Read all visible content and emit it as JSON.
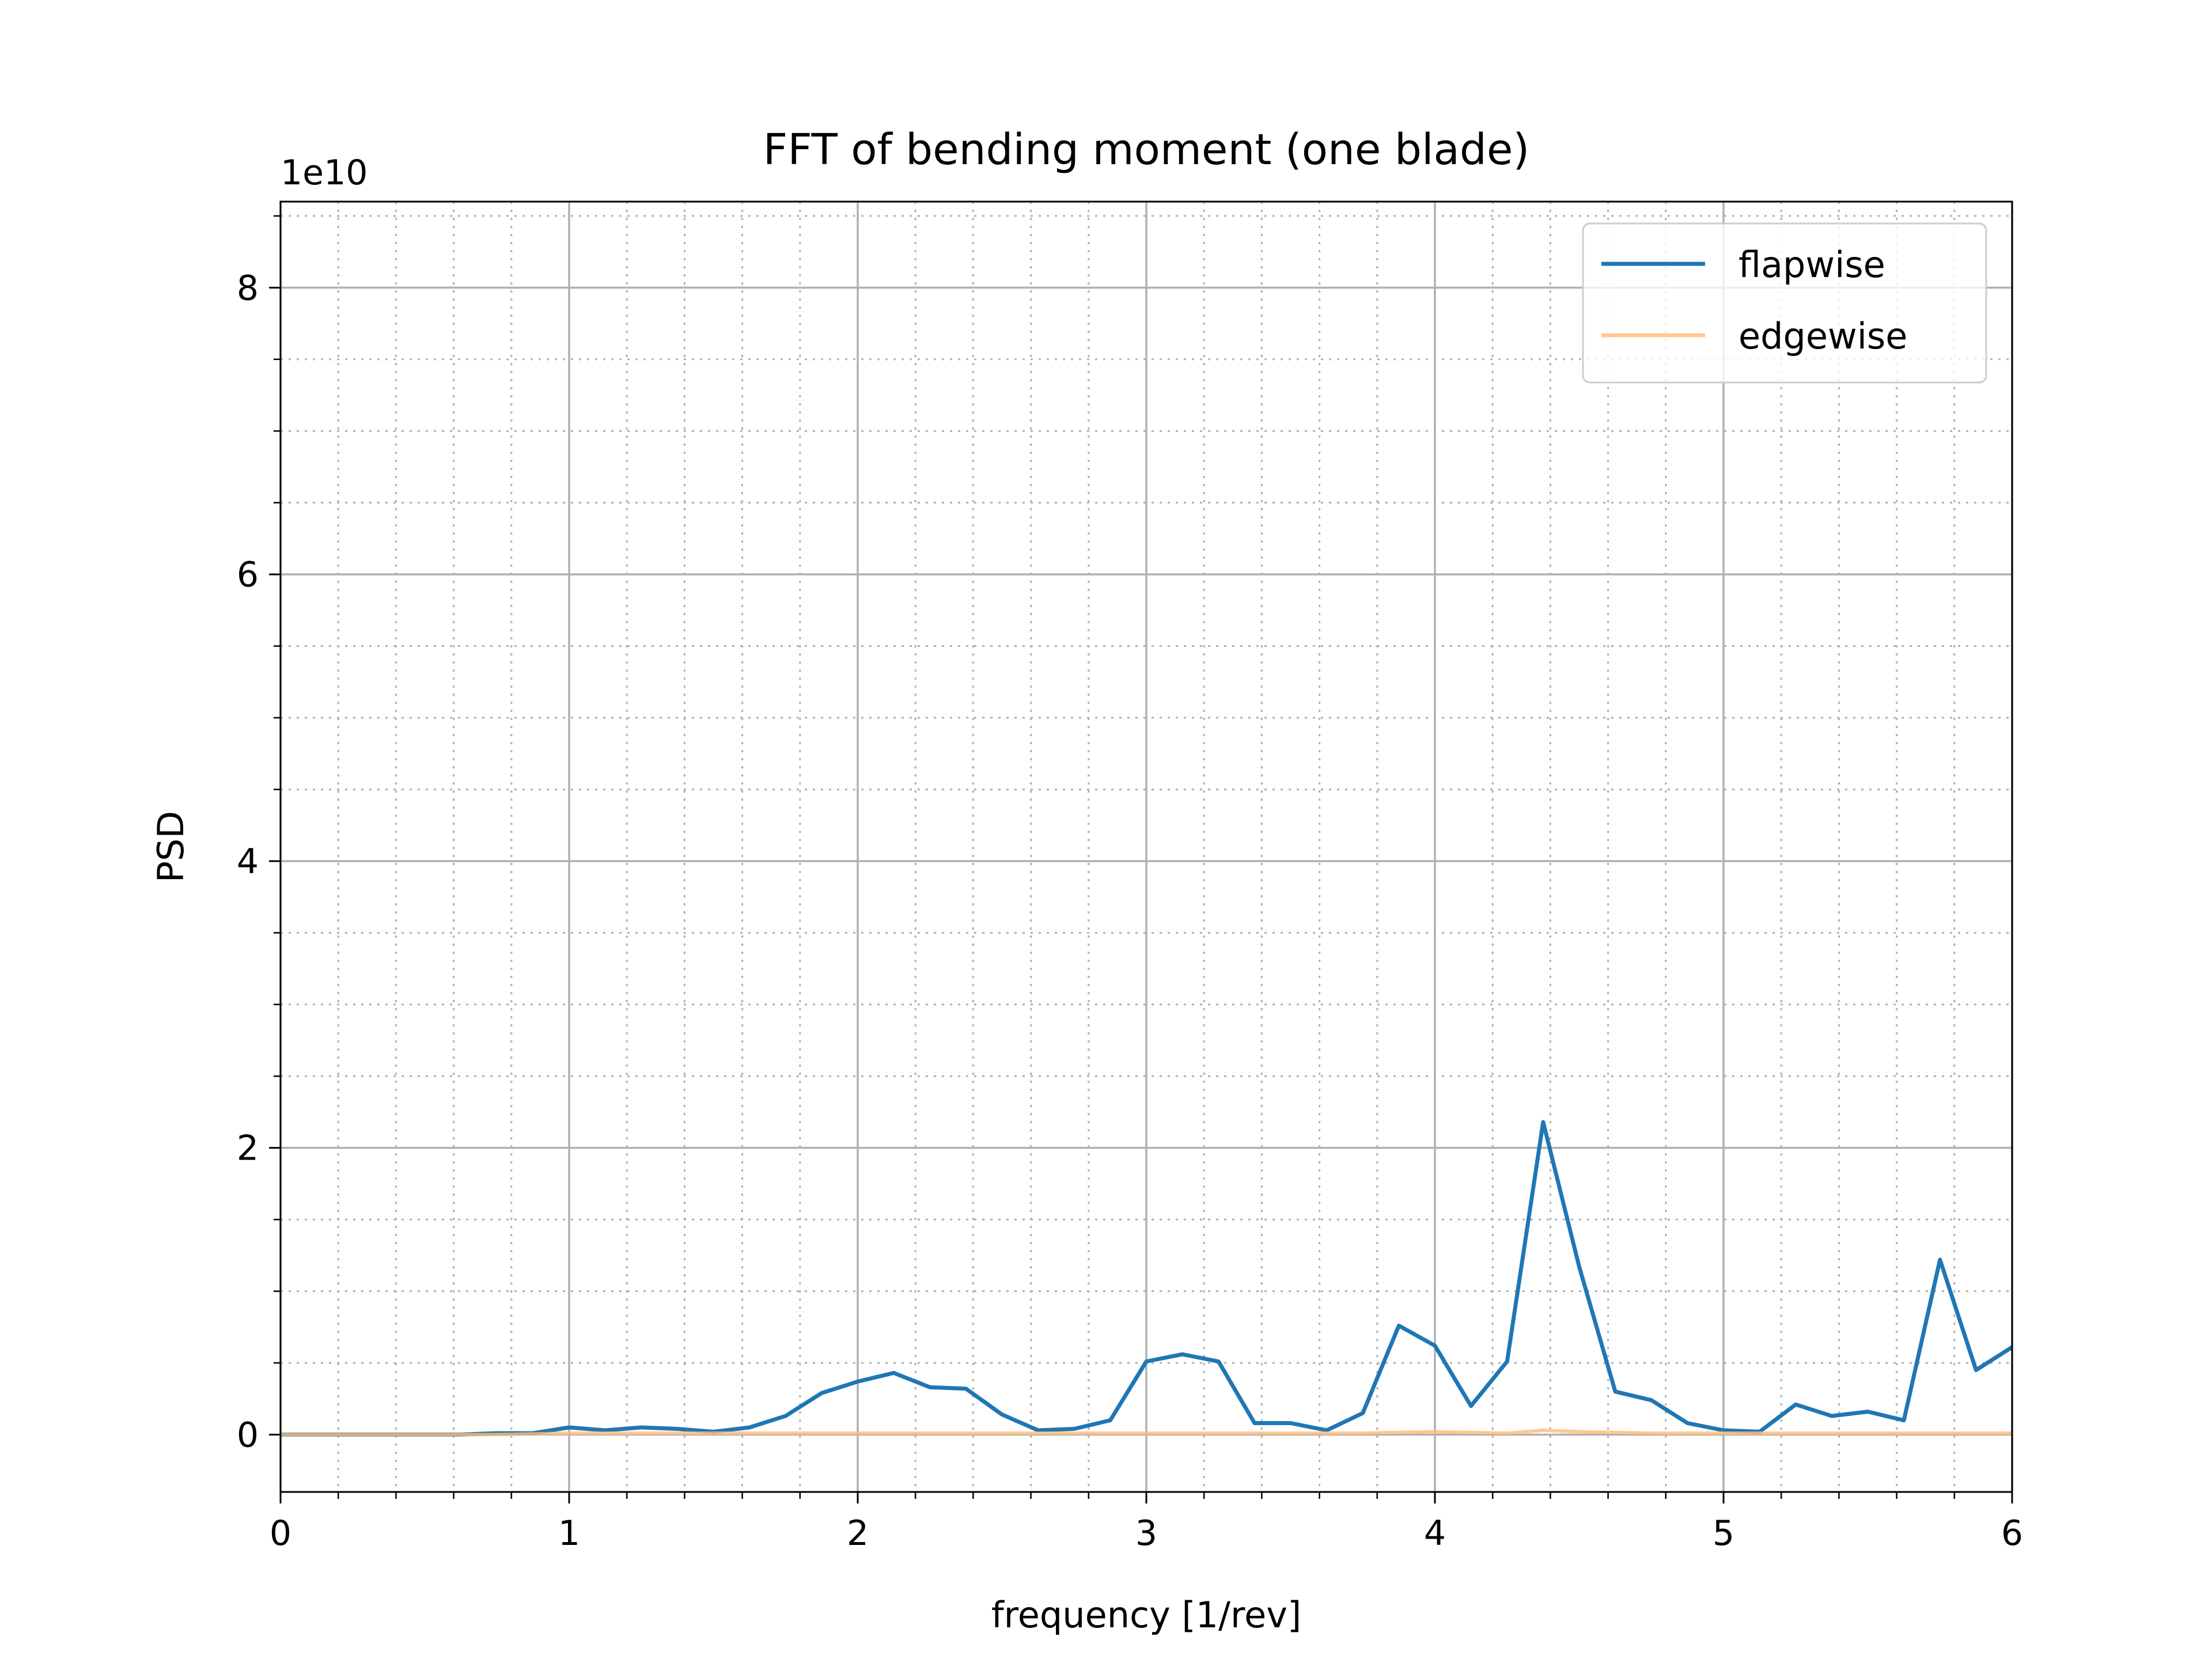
{
  "chart_data": {
    "type": "line",
    "title": "FFT of bending moment (one blade)",
    "xlabel": "frequency [1/rev]",
    "ylabel": "PSD",
    "y_offset_label": "1e10",
    "y_multiplier": 10000000000,
    "xlim": [
      0,
      6
    ],
    "ylim": [
      -0.4,
      8.6
    ],
    "x_ticks": [
      0,
      1,
      2,
      3,
      4,
      5,
      6
    ],
    "x_tick_labels": [
      "0",
      "1",
      "2",
      "3",
      "4",
      "5",
      "6"
    ],
    "y_ticks": [
      0,
      2,
      4,
      6,
      8
    ],
    "y_tick_labels": [
      "0",
      "2",
      "4",
      "6",
      "8"
    ],
    "grid": true,
    "minor_grid": true,
    "legend_position": "top-right",
    "series": [
      {
        "name": "flapwise",
        "color": "#1f77b4",
        "x": [
          0,
          0.125,
          0.25,
          0.375,
          0.5,
          0.625,
          0.75,
          0.875,
          1.0,
          1.125,
          1.25,
          1.375,
          1.5,
          1.625,
          1.75,
          1.875,
          2.0,
          2.125,
          2.25,
          2.375,
          2.5,
          2.625,
          2.75,
          2.875,
          3.0,
          3.125,
          3.25,
          3.375,
          3.5,
          3.625,
          3.75,
          3.875,
          4.0,
          4.125,
          4.25,
          4.375,
          4.5,
          4.625,
          4.75,
          4.875,
          5.0,
          5.125,
          5.25,
          5.375,
          5.5,
          5.625,
          5.75,
          5.875,
          6.0
        ],
        "y": [
          0.0,
          0.0,
          0.0,
          0.0,
          0.0,
          0.0,
          0.01,
          0.01,
          0.05,
          0.03,
          0.05,
          0.04,
          0.02,
          0.05,
          0.13,
          0.29,
          0.37,
          0.43,
          0.33,
          0.32,
          0.14,
          0.03,
          0.04,
          0.1,
          0.51,
          0.56,
          0.51,
          0.08,
          0.08,
          0.03,
          0.15,
          0.76,
          0.62,
          0.2,
          0.51,
          2.18,
          1.17,
          0.3,
          0.24,
          0.08,
          0.03,
          0.02,
          0.21,
          0.13,
          0.16,
          0.1,
          1.22,
          0.45,
          0.61
        ]
      },
      {
        "name": "edgewise",
        "color": "#ffbb78",
        "x": [
          0,
          0.25,
          0.5,
          0.75,
          1.0,
          1.25,
          1.5,
          1.75,
          2.0,
          2.25,
          2.5,
          2.75,
          3.0,
          3.25,
          3.5,
          3.75,
          4.0,
          4.25,
          4.375,
          4.5,
          4.75,
          5.0,
          5.25,
          5.5,
          5.75,
          6.0
        ],
        "y": [
          0.0,
          0.0,
          0.0,
          0.0,
          0.01,
          0.01,
          0.01,
          0.01,
          0.01,
          0.01,
          0.01,
          0.01,
          0.01,
          0.01,
          0.01,
          0.01,
          0.02,
          0.01,
          0.03,
          0.02,
          0.01,
          0.01,
          0.01,
          0.01,
          0.01,
          0.01
        ]
      }
    ]
  }
}
